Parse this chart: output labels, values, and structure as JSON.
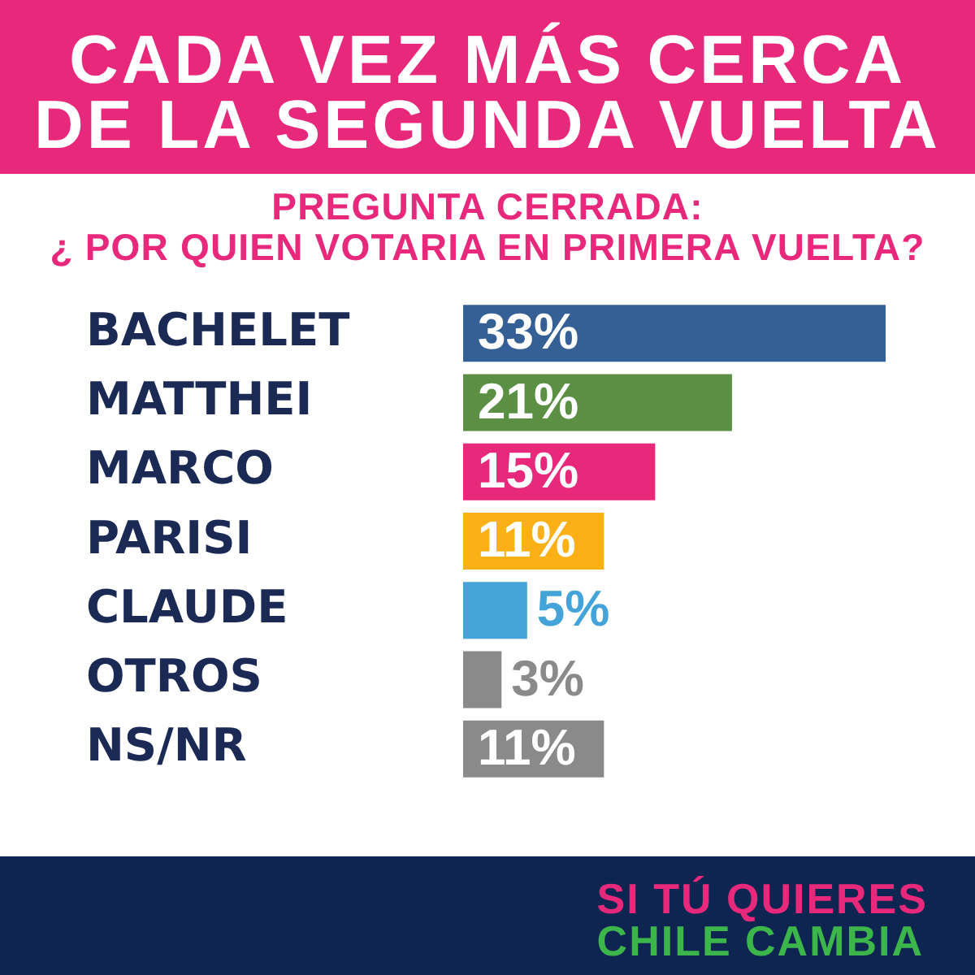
{
  "chart_data": {
    "type": "bar",
    "orientation": "horizontal",
    "title": "CADA VEZ MÁS CERCA\nDE LA SEGUNDA VUELTA",
    "subtitle": "PREGUNTA CERRADA:\n¿ POR QUIEN VOTARIA EN PRIMERA VUELTA?",
    "categories": [
      "BACHELET",
      "MATTHEI",
      "MARCO",
      "PARISI",
      "CLAUDE",
      "OTROS",
      "NS/NR"
    ],
    "values": [
      33,
      21,
      15,
      11,
      5,
      3,
      11
    ],
    "colors": [
      "#356095",
      "#5a8f44",
      "#e8297b",
      "#fbb116",
      "#44a4da",
      "#8a8a8a",
      "#8a8a8a"
    ],
    "value_labels": [
      "33%",
      "21%",
      "15%",
      "11%",
      "5%",
      "3%",
      "11%"
    ],
    "annotations": [
      "SI TÚ QUIERES",
      "CHILE CAMBIA"
    ],
    "grid": false,
    "legend": false,
    "tick_labels": "y"
  }
}
